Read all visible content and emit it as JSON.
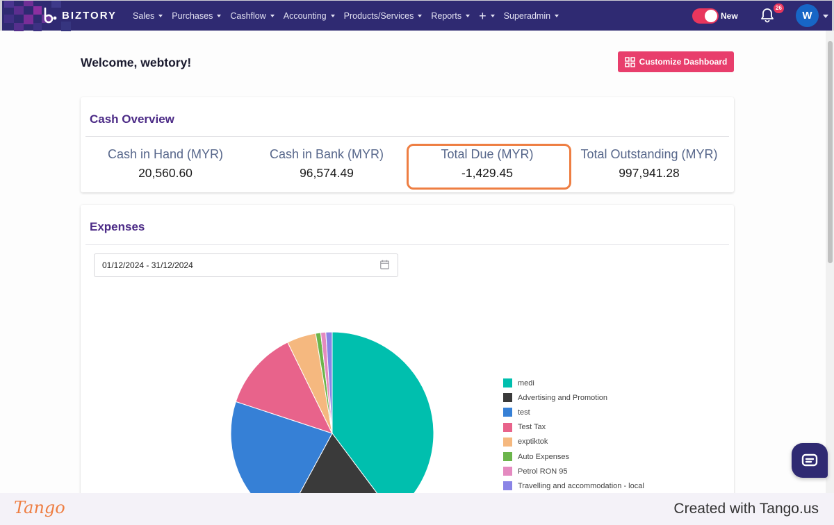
{
  "nav": {
    "brand": "BIZTORY",
    "items": [
      {
        "label": "Sales"
      },
      {
        "label": "Purchases"
      },
      {
        "label": "Cashflow"
      },
      {
        "label": "Accounting"
      },
      {
        "label": "Products/Services"
      },
      {
        "label": "Reports"
      },
      {
        "label": "+"
      },
      {
        "label": "Superadmin"
      }
    ],
    "toggle_label": "New",
    "notification_count": "26",
    "avatar_initial": "W"
  },
  "header": {
    "welcome": "Welcome, webtory!",
    "customize_label": "Customize Dashboard"
  },
  "cash_overview": {
    "title": "Cash Overview",
    "metrics": [
      {
        "label": "Cash in Hand (MYR)",
        "value": "20,560.60"
      },
      {
        "label": "Cash in Bank (MYR)",
        "value": "96,574.49"
      },
      {
        "label": "Total Due (MYR)",
        "value": "-1,429.45"
      },
      {
        "label": "Total Outstanding (MYR)",
        "value": "997,941.28"
      }
    ]
  },
  "expenses": {
    "title": "Expenses",
    "date_range": "01/12/2024 - 31/12/2024"
  },
  "chart_data": {
    "type": "pie",
    "title": "Expenses",
    "categories": [
      "medi",
      "Advertising and Promotion",
      "test",
      "Test Tax",
      "exptiktok",
      "Auto Expenses",
      "Petrol RON 95",
      "Travelling and accommodation - local"
    ],
    "values": [
      39.5,
      18.0,
      22.0,
      12.6,
      4.6,
      0.8,
      0.8,
      1.0
    ],
    "colors": [
      "#00bfae",
      "#3a3a3a",
      "#3680d6",
      "#e8638b",
      "#f5b87f",
      "#6bb54b",
      "#e48ac0",
      "#8a84e6"
    ],
    "legend": "right"
  },
  "footer": {
    "logo_text": "Tango",
    "created_text": "Created with Tango.us"
  }
}
